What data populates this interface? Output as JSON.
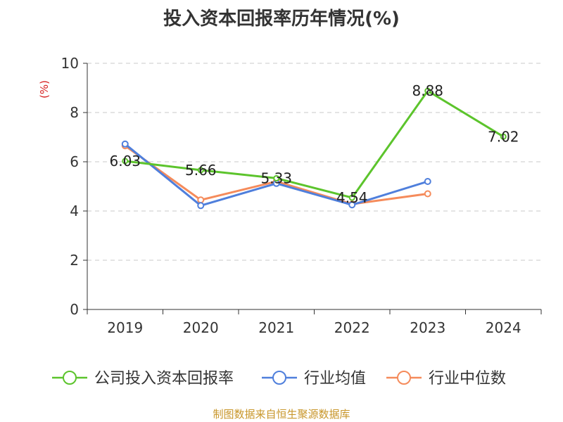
{
  "title": "投入资本回报率历年情况(%)",
  "source": "制图数据来自恒生聚源数据库",
  "chart_data": {
    "type": "line",
    "title": "投入资本回报率历年情况(%)",
    "ylabel": "(%)",
    "ylim": [
      0,
      10
    ],
    "yticks": [
      "0",
      "2",
      "4",
      "6",
      "8",
      "10"
    ],
    "categories": [
      "2019",
      "2020",
      "2021",
      "2022",
      "2023",
      "2024"
    ],
    "grid": true,
    "legend_position": "bottom",
    "series": [
      {
        "name": "公司投入资本回报率",
        "color": "#5cc42c",
        "values": [
          6.03,
          5.66,
          5.33,
          4.54,
          8.88,
          7.02
        ],
        "labels": [
          "6.03",
          "5.66",
          "5.33",
          "4.54",
          "8.88",
          "7.02"
        ]
      },
      {
        "name": "行业均值",
        "color": "#4f7fdc",
        "values": [
          6.72,
          4.22,
          5.12,
          4.25,
          5.2,
          null
        ]
      },
      {
        "name": "行业中位数",
        "color": "#f58b5b",
        "values": [
          6.65,
          4.45,
          5.2,
          4.28,
          4.7,
          null
        ]
      }
    ]
  }
}
